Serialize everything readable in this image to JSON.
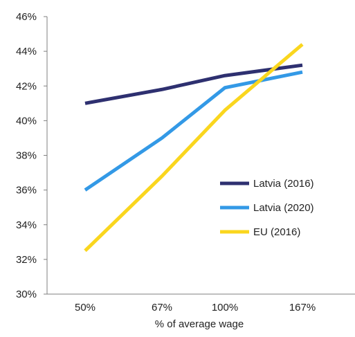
{
  "chart_data": {
    "type": "line",
    "title": "",
    "xlabel": "% of average wage",
    "ylabel": "",
    "categories": [
      "50%",
      "67%",
      "100%",
      "167%"
    ],
    "ylim": [
      30,
      46
    ],
    "yticks": [
      30,
      32,
      34,
      36,
      38,
      40,
      42,
      44,
      46
    ],
    "ytick_labels": [
      "30%",
      "32%",
      "34%",
      "36%",
      "38%",
      "40%",
      "42%",
      "44%",
      "46%"
    ],
    "grid": false,
    "legend_position": "inside-right",
    "series": [
      {
        "name": "Latvia (2016)",
        "color": "#2e3070",
        "values": [
          41.0,
          41.8,
          42.6,
          43.2
        ]
      },
      {
        "name": "Latvia (2020)",
        "color": "#3399e6",
        "values": [
          36.0,
          39.0,
          41.9,
          42.8
        ]
      },
      {
        "name": "EU (2016)",
        "color": "#fad61e",
        "values": [
          32.5,
          36.8,
          40.6,
          44.4
        ]
      }
    ]
  }
}
